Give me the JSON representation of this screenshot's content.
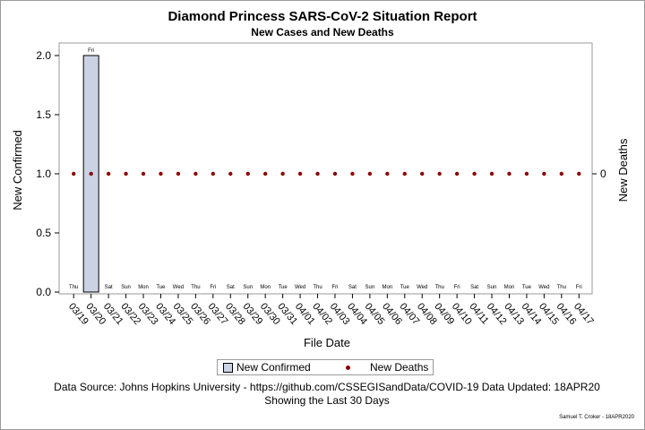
{
  "chart_data": {
    "type": "bar",
    "title": "Diamond Princess SARS-CoV-2 Situation Report",
    "subtitle": "New Cases and New Deaths",
    "xlabel": "File Date",
    "ylabel": "New Confirmed",
    "y2label": "New Deaths",
    "ylim": [
      0,
      2
    ],
    "yticks": [
      "0.0",
      "0.5",
      "1.0",
      "1.5",
      "2.0"
    ],
    "y2ticks": [
      "0"
    ],
    "categories": [
      "03/19",
      "03/20",
      "03/21",
      "03/22",
      "03/23",
      "03/24",
      "03/25",
      "03/26",
      "03/27",
      "03/28",
      "03/29",
      "03/30",
      "03/31",
      "04/01",
      "04/02",
      "04/03",
      "04/04",
      "04/05",
      "04/06",
      "04/07",
      "04/08",
      "04/09",
      "04/10",
      "04/11",
      "04/12",
      "04/13",
      "04/14",
      "04/15",
      "04/16",
      "04/17"
    ],
    "weekdays": [
      "Thu",
      "Fri",
      "Sat",
      "Sun",
      "Mon",
      "Tue",
      "Wed",
      "Thu",
      "Fri",
      "Sat",
      "Sun",
      "Mon",
      "Tue",
      "Wed",
      "Thu",
      "Fri",
      "Sat",
      "Sun",
      "Mon",
      "Tue",
      "Wed",
      "Thu",
      "Fri",
      "Sat",
      "Sun",
      "Mon",
      "Tue",
      "Wed",
      "Thu",
      "Fri"
    ],
    "series": [
      {
        "name": "New Confirmed",
        "kind": "bar",
        "color": "#cad2e4",
        "values": [
          0,
          2,
          0,
          0,
          0,
          0,
          0,
          0,
          0,
          0,
          0,
          0,
          0,
          0,
          0,
          0,
          0,
          0,
          0,
          0,
          0,
          0,
          0,
          0,
          0,
          0,
          0,
          0,
          0,
          0
        ]
      },
      {
        "name": "New Deaths",
        "kind": "scatter",
        "axis": "right",
        "color": "#8b0000",
        "values": [
          0,
          0,
          0,
          0,
          0,
          0,
          0,
          0,
          0,
          0,
          0,
          0,
          0,
          0,
          0,
          0,
          0,
          0,
          0,
          0,
          0,
          0,
          0,
          0,
          0,
          0,
          0,
          0,
          0,
          0
        ]
      }
    ],
    "legend": "bottom"
  },
  "footnote": {
    "line1": "Data Source: Johns Hopkins University - https://github.com/CSSEGISandData/COVID-19 Data Updated: 18APR20",
    "line2": "Showing the Last 30 Days",
    "credit": "Samuel T. Croker - 18APR2020"
  }
}
